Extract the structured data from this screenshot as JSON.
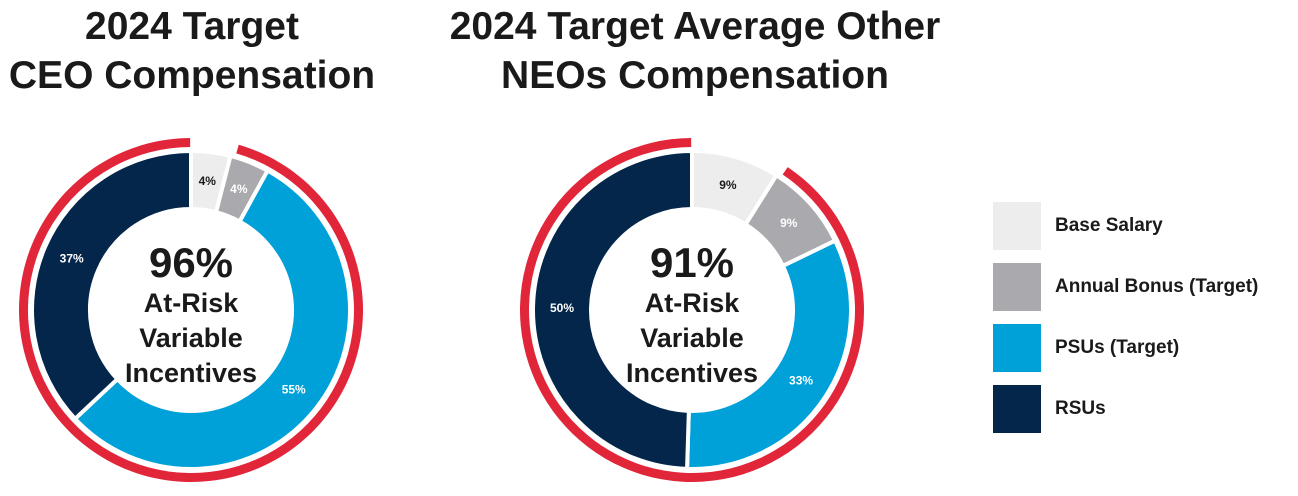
{
  "colors": {
    "base_salary": "#ededee",
    "annual_bonus": "#a9a9ae",
    "psus": "#00a0d9",
    "rsus": "#03264a",
    "at_risk_ring": "#e2263a"
  },
  "chart_data": [
    {
      "type": "pie",
      "title": "2024 Target CEO Compensation",
      "title_lines": [
        "2024 Target",
        "CEO Compensation"
      ],
      "center_value": "96%",
      "center_label_lines": [
        "At-Risk",
        "Variable",
        "Incentives"
      ],
      "categories": [
        "Base Salary",
        "Annual Bonus (Target)",
        "PSUs (Target)",
        "RSUs"
      ],
      "values": [
        4,
        4,
        55,
        37
      ],
      "labels": [
        "4%",
        "4%",
        "55%",
        "37%"
      ],
      "outer_ring": "at-risk variable incentives (all segments except Base Salary)"
    },
    {
      "type": "pie",
      "title": "2024 Target Average Other NEOs Compensation",
      "title_lines": [
        "2024 Target Average Other",
        "NEOs Compensation"
      ],
      "center_value": "91%",
      "center_label_lines": [
        "At-Risk",
        "Variable",
        "Incentives"
      ],
      "categories": [
        "Base Salary",
        "Annual Bonus (Target)",
        "PSUs (Target)",
        "RSUs"
      ],
      "values": [
        9,
        9,
        33,
        50
      ],
      "labels": [
        "9%",
        "9%",
        "33%",
        "50%"
      ],
      "outer_ring": "at-risk variable incentives (all segments except Base Salary)"
    }
  ],
  "legend": {
    "position": "right",
    "items": [
      {
        "label": "Base Salary",
        "color": "#ededee"
      },
      {
        "label": "Annual Bonus (Target)",
        "color": "#a9a9ae"
      },
      {
        "label": "PSUs (Target)",
        "color": "#00a0d9"
      },
      {
        "label": "RSUs",
        "color": "#03264a"
      }
    ]
  }
}
